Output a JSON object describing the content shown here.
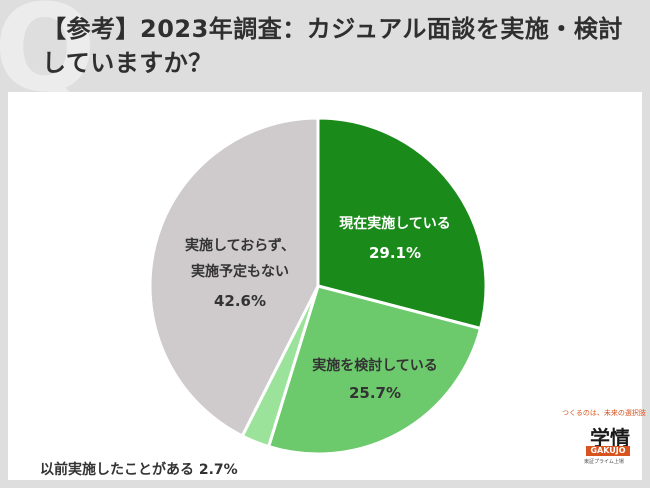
{
  "title": "【参考】2023年調査：カジュアル面談を実施・検討していますか？",
  "watermark": "Q",
  "chart_data": {
    "type": "pie",
    "title": "【参考】2023年調査：カジュアル面談を実施・検討していますか？",
    "slices": [
      {
        "label_lines": [
          "現在実施している"
        ],
        "value": 29.1,
        "value_text": "29.1%",
        "color": "#1a8a1a",
        "text_color": "#ffffff"
      },
      {
        "label_lines": [
          "実施を検討している"
        ],
        "value": 25.7,
        "value_text": "25.7%",
        "color": "#6cc96c",
        "text_color": "#333333"
      },
      {
        "label_lines": [
          "以前実施したことがある"
        ],
        "value": 2.7,
        "value_text": "2.7%",
        "color": "#9be39b",
        "text_color": "#333333"
      },
      {
        "label_lines": [
          "実施しておらず、",
          "実施予定もない"
        ],
        "value": 42.6,
        "value_text": "42.6%",
        "color": "#cfcbcc",
        "text_color": "#333333"
      }
    ],
    "outside_label": "以前実施したことがある 2.7%"
  },
  "logo": {
    "tagline": "つくるのは、未来の選択肢",
    "mark": "学情",
    "name": "GAKUJO",
    "sub": "東証プライム上場"
  }
}
